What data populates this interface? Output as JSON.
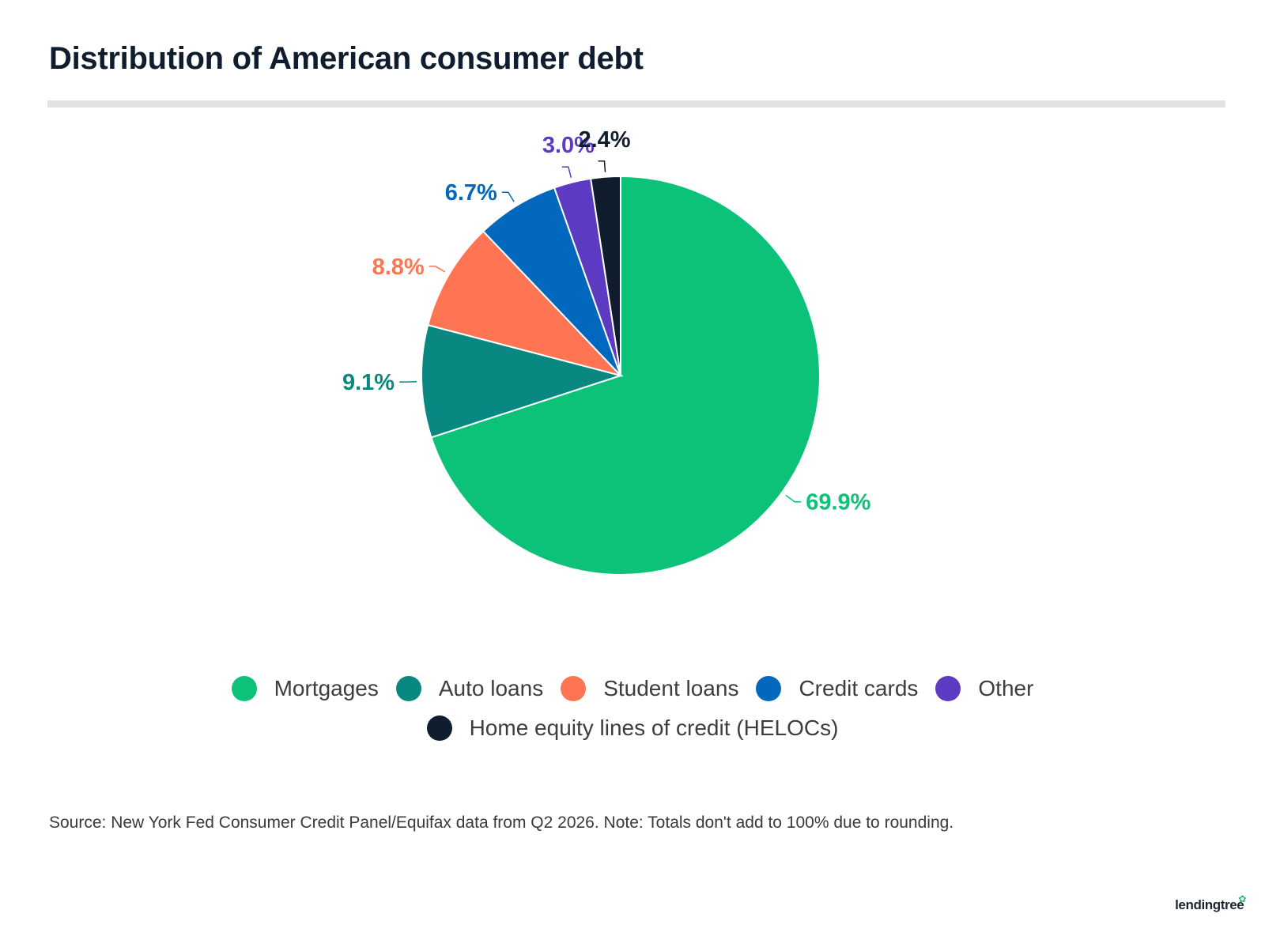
{
  "title": "Distribution of American consumer debt",
  "chart_data": {
    "type": "pie",
    "start_angle_deg": 0,
    "direction": "clockwise",
    "slices": [
      {
        "name": "Mortgages",
        "value": 69.9,
        "label": "69.9%",
        "color": "#0cc278"
      },
      {
        "name": "Auto loans",
        "value": 9.1,
        "label": "9.1%",
        "color": "#098781"
      },
      {
        "name": "Student loans",
        "value": 8.8,
        "label": "8.8%",
        "color": "#ff7452"
      },
      {
        "name": "Credit cards",
        "value": 6.7,
        "label": "6.7%",
        "color": "#0168bd"
      },
      {
        "name": "Other",
        "value": 3.0,
        "label": "3.0%",
        "color": "#5c3bc2"
      },
      {
        "name": "Home equity lines of credit (HELOCs)",
        "value": 2.4,
        "label": "2.4%",
        "color": "#0f1d2f"
      }
    ],
    "legend_position": "bottom",
    "label_colors": [
      "#0cc278",
      "#098781",
      "#ff7452",
      "#0168bd",
      "#5c3bc2",
      "#0f1d2f"
    ]
  },
  "legend": {
    "row1": [
      "Mortgages",
      "Auto loans",
      "Student loans",
      "Credit cards",
      "Other"
    ],
    "row2": [
      "Home equity lines of credit (HELOCs)"
    ]
  },
  "source": "Source: New York Fed Consumer Credit Panel/Equifax data from Q2 2026. Note: Totals don't add to 100% due to rounding.",
  "logo": {
    "text": "lendingtree",
    "icon": "leaf-icon"
  }
}
